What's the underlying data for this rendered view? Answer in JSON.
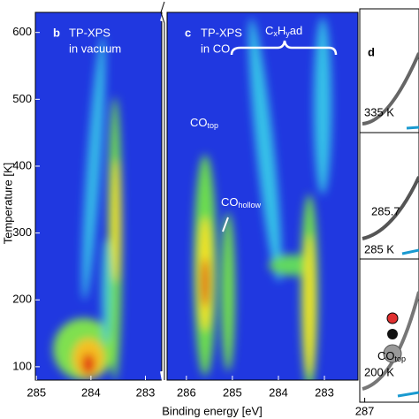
{
  "chart_data": [
    {
      "type": "heatmap",
      "panel": "b",
      "label": "TP-XPS",
      "sublabel": "in vacuum",
      "ylabel": "Temperature [K]",
      "ylim": [
        80,
        630
      ],
      "yticks": [
        100,
        200,
        300,
        400,
        500,
        600
      ],
      "xlim": [
        285.02,
        282.7
      ],
      "xticks": [
        285,
        284,
        283
      ]
    },
    {
      "type": "heatmap",
      "panel": "c",
      "label": "TP-XPS",
      "sublabel": "in CO",
      "xlabel": "Binding energy [eV]",
      "ylim": [
        80,
        630
      ],
      "xlim": [
        286.42,
        282.27
      ],
      "xticks": [
        286,
        285,
        284,
        283
      ],
      "annotations": [
        {
          "segments": [
            "C",
            "x",
            "H",
            "y",
            "ad"
          ]
        },
        {
          "segments": [
            "CO",
            "top"
          ]
        },
        {
          "segments": [
            "CO",
            "hollow"
          ]
        }
      ]
    },
    {
      "type": "spectra",
      "panel": "d",
      "xlim": [
        287.1,
        285.9
      ],
      "xticks": [
        287
      ],
      "annotations": [
        "335 K",
        "285.7",
        "285 K",
        "200 K"
      ],
      "molecule_label": {
        "segments": [
          "CO",
          "top"
        ]
      }
    }
  ]
}
